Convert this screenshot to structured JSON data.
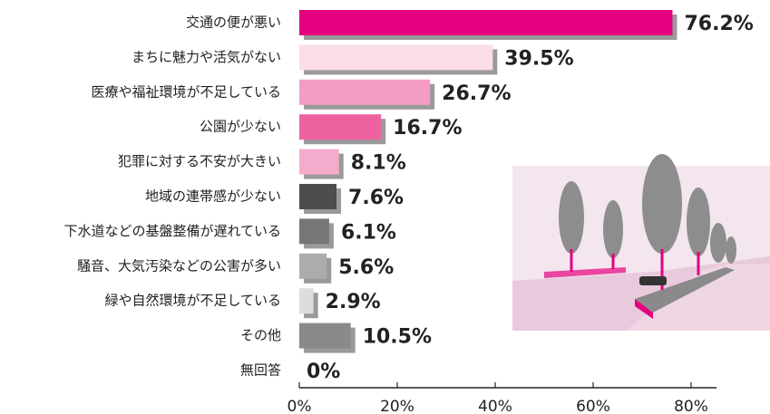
{
  "chart_data": {
    "type": "bar",
    "orientation": "horizontal",
    "categories": [
      "交通の便が悪い",
      "まちに魅力や活気がない",
      "医療や福祉環境が不足している",
      "公園が少ない",
      "犯罪に対する不安が大きい",
      "地域の連帯感が少ない",
      "下水道などの基盤整備が遅れている",
      "騒音、大気汚染などの公害が多い",
      "緑や自然環境が不足している",
      "その他",
      "無回答"
    ],
    "values": [
      76.2,
      39.5,
      26.7,
      16.7,
      8.1,
      7.6,
      6.1,
      5.6,
      2.9,
      10.5,
      0
    ],
    "value_labels": [
      "76.2%",
      "39.5%",
      "26.7%",
      "16.7%",
      "8.1%",
      "7.6%",
      "6.1%",
      "5.6%",
      "2.9%",
      "10.5%",
      "0%"
    ],
    "colors": [
      "#e5007f",
      "#fbdde9",
      "#f49cc4",
      "#ee62a2",
      "#f5abcc",
      "#4d4d4d",
      "#777777",
      "#acacac",
      "#dddddd",
      "#8a8a8a",
      "#8a8a8a"
    ],
    "xlim": [
      0,
      85
    ],
    "xticks": [
      {
        "value": 0,
        "label": "0%"
      },
      {
        "value": 20,
        "label": "20%"
      },
      {
        "value": 40,
        "label": "40%"
      },
      {
        "value": 60,
        "label": "60%"
      },
      {
        "value": 80,
        "label": "80%"
      }
    ]
  }
}
